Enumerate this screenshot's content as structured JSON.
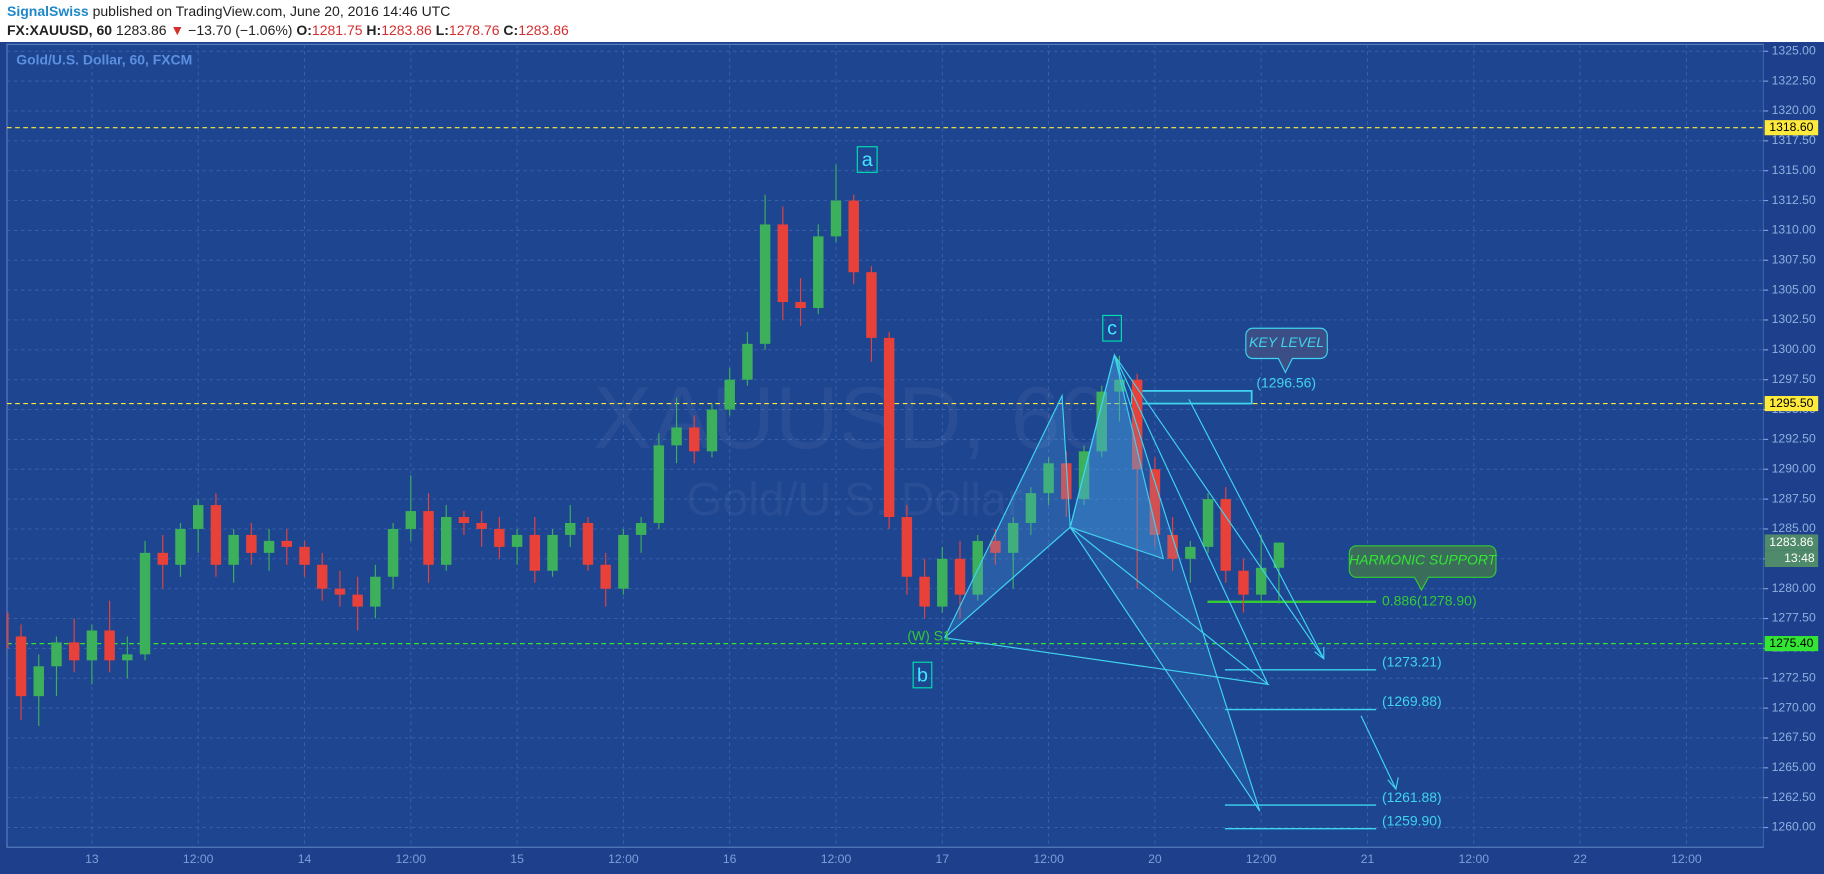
{
  "header": {
    "author": "SignalSwiss",
    "published": "published on TradingView.com, June 20, 2016 14:46 UTC",
    "symbol": "FX:XAUUSD, 60",
    "last": "1283.86",
    "arrow": "▼",
    "change": "−13.70 (−1.06%)",
    "o_label": "O:",
    "o": "1281.75",
    "h_label": "H:",
    "h": "1283.86",
    "l_label": "L:",
    "l": "1278.76",
    "c_label": "C:",
    "c": "1283.86"
  },
  "chart_data": {
    "type": "candlestick",
    "title": "Gold/U.S. Dollar, 60, FXCM",
    "watermark": "XAUUSD, 60",
    "watermark_sub": "Gold/U.S. Dollar",
    "categories": [
      null,
      null,
      null,
      null,
      null,
      "13",
      null,
      null,
      null,
      null,
      null,
      "12:00",
      null,
      null,
      null,
      null,
      null,
      "14",
      null,
      null,
      null,
      null,
      null,
      "12:00",
      null,
      null,
      null,
      null,
      null,
      "15",
      null,
      null,
      null,
      null,
      null,
      "12:00",
      null,
      null,
      null,
      null,
      null,
      "16",
      null,
      null,
      null,
      null,
      null,
      "12:00",
      null,
      null,
      null,
      null,
      null,
      "17",
      null,
      null,
      null,
      null,
      null,
      "12:00",
      null,
      null,
      null,
      null,
      null,
      "20",
      null,
      null,
      null,
      null,
      null,
      "12:00",
      null,
      null,
      null,
      null,
      null,
      "21",
      null,
      null,
      null,
      null,
      null,
      "12:00",
      null,
      null,
      null,
      null,
      null,
      "22",
      null,
      null,
      null,
      null,
      null,
      "12:00",
      null,
      null,
      null,
      null
    ],
    "open": [
      1278,
      1276,
      1271,
      1273.5,
      1275.5,
      1274,
      1276.5,
      1274,
      1274.5,
      1283,
      1282,
      1285,
      1287,
      1282,
      1284.5,
      1283,
      1284,
      1283.5,
      1282,
      1280,
      1279.5,
      1278.5,
      1281,
      1285,
      1286.5,
      1282,
      1286,
      1285.5,
      1285,
      1283.5,
      1284.5,
      1281.5,
      1284.5,
      1285.5,
      1282,
      1280,
      1284.5,
      1285.5,
      1292,
      1293.5,
      1291.5,
      1295,
      1297.5,
      1300.5,
      1310.5,
      1304,
      1303.5,
      1309.5,
      1312.5,
      1306.5,
      1301,
      1286,
      1281,
      1278.5,
      1282.5,
      1279.5,
      1284,
      1283,
      1285.5,
      1288,
      1290.5,
      1287.5,
      1291.5,
      1296.5,
      1297.5,
      1290,
      1284.5,
      1282.5,
      1283.5,
      1287.5,
      1281.5,
      1279.5,
      1281.75,
      null,
      null,
      null,
      null,
      null,
      null,
      null,
      null,
      null,
      null,
      null,
      null,
      null,
      null,
      null,
      null,
      null,
      null,
      null,
      null,
      null,
      null,
      null,
      null,
      null,
      null,
      null
    ],
    "high": [
      1280,
      1277,
      1274.5,
      1276,
      1277.5,
      1277,
      1279,
      1276,
      1284,
      1284.5,
      1285.5,
      1287.5,
      1288,
      1285,
      1285.5,
      1285,
      1285,
      1284,
      1283,
      1281.5,
      1281,
      1282,
      1285.5,
      1289.5,
      1288,
      1287,
      1286.5,
      1286.5,
      1286,
      1285,
      1286,
      1285,
      1287,
      1286,
      1283,
      1285,
      1286,
      1293,
      1296,
      1294.5,
      1295.5,
      1298.5,
      1301.5,
      1313,
      1312,
      1306,
      1310.5,
      1315.5,
      1313,
      1307,
      1301.5,
      1287,
      1282.5,
      1283.5,
      1284,
      1284.5,
      1285,
      1286,
      1288.5,
      1291,
      1291.5,
      1292,
      1297,
      1299.5,
      1298,
      1291,
      1286,
      1284,
      1288,
      1288.5,
      1282.5,
      1284.5,
      1283.86,
      null,
      null,
      null,
      null,
      null,
      null,
      null,
      null,
      null,
      null,
      null,
      null,
      null,
      null,
      null,
      null,
      null,
      null,
      null,
      null,
      null,
      null,
      null,
      null,
      null,
      null,
      null
    ],
    "low": [
      1273,
      1269,
      1268.5,
      1271,
      1273,
      1272,
      1273,
      1272.5,
      1274,
      1280,
      1281,
      1283,
      1281,
      1280.5,
      1282,
      1281.5,
      1282,
      1281,
      1279,
      1278.5,
      1276.5,
      1277.5,
      1280,
      1284,
      1280.5,
      1281.5,
      1284.5,
      1283.5,
      1282.5,
      1282,
      1280.5,
      1281,
      1283.5,
      1281.5,
      1278.5,
      1279.5,
      1283,
      1285,
      1290.5,
      1290.5,
      1291,
      1294.5,
      1297,
      1300,
      1302.5,
      1302,
      1303,
      1309,
      1305.5,
      1299,
      1285,
      1279.5,
      1277.5,
      1278,
      1277.5,
      1279,
      1282,
      1280,
      1284.5,
      1287,
      1286,
      1287,
      1291,
      1294,
      1280,
      1283.5,
      1281.5,
      1280.5,
      1283,
      1280.5,
      1278,
      1279,
      1278.76,
      null,
      null,
      null,
      null,
      null,
      null,
      null,
      null,
      null,
      null,
      null,
      null,
      null,
      null,
      null,
      null,
      null,
      null,
      null,
      null,
      null,
      null,
      null,
      null,
      null,
      null,
      null
    ],
    "close": [
      1275,
      1271,
      1273.5,
      1275.5,
      1274,
      1276.5,
      1274,
      1274.5,
      1283,
      1282,
      1285,
      1287,
      1282,
      1284.5,
      1283,
      1284,
      1283.5,
      1282,
      1280,
      1279.5,
      1278.5,
      1281,
      1285,
      1286.5,
      1282,
      1286,
      1285.5,
      1285,
      1283.5,
      1284.5,
      1281.5,
      1284.5,
      1285.5,
      1282,
      1280,
      1284.5,
      1285.5,
      1292,
      1293.5,
      1291.5,
      1295,
      1297.5,
      1300.5,
      1310.5,
      1304,
      1303.5,
      1309.5,
      1312.5,
      1306.5,
      1301,
      1286,
      1281,
      1278.5,
      1282.5,
      1279.5,
      1284,
      1283,
      1285.5,
      1288,
      1290.5,
      1287.5,
      1291.5,
      1296.5,
      1297.5,
      1290,
      1284.5,
      1282.5,
      1283.5,
      1287.5,
      1281.5,
      1279.5,
      1281.75,
      1283.86,
      null,
      null,
      null,
      null,
      null,
      null,
      null,
      null,
      null,
      null,
      null,
      null,
      null,
      null,
      null,
      null,
      null,
      null,
      null,
      null,
      null,
      null,
      null,
      null,
      null,
      null,
      null
    ],
    "up_color": "#3cb05a",
    "down_color": "#e8413a",
    "ylim": [
      1258.35,
      1325.58
    ],
    "yticks": [
      {
        "value": 1260,
        "label": "1260.00"
      },
      {
        "value": 1262.5,
        "label": "1262.50"
      },
      {
        "value": 1265,
        "label": "1265.00"
      },
      {
        "value": 1267.5,
        "label": "1267.50"
      },
      {
        "value": 1270,
        "label": "1270.00"
      },
      {
        "value": 1272.5,
        "label": "1272.50"
      },
      {
        "value": 1275,
        "label": "1275.00"
      },
      {
        "value": 1277.5,
        "label": "1277.50"
      },
      {
        "value": 1280,
        "label": "1280.00"
      },
      {
        "value": 1282.5,
        "label": "1282.50"
      },
      {
        "value": 1285,
        "label": "1285.00"
      },
      {
        "value": 1287.5,
        "label": "1287.50"
      },
      {
        "value": 1290,
        "label": "1290.00"
      },
      {
        "value": 1292.5,
        "label": "1292.50"
      },
      {
        "value": 1295,
        "label": "1295.00"
      },
      {
        "value": 1297.5,
        "label": "1297.50"
      },
      {
        "value": 1300,
        "label": "1300.00"
      },
      {
        "value": 1302.5,
        "label": "1302.50"
      },
      {
        "value": 1305,
        "label": "1305.00"
      },
      {
        "value": 1307.5,
        "label": "1307.50"
      },
      {
        "value": 1310,
        "label": "1310.00"
      },
      {
        "value": 1312.5,
        "label": "1312.50"
      },
      {
        "value": 1315,
        "label": "1315.00"
      },
      {
        "value": 1317.5,
        "label": "1317.50"
      },
      {
        "value": 1320,
        "label": "1320.00"
      },
      {
        "value": 1322.5,
        "label": "1322.50"
      },
      {
        "value": 1325,
        "label": "1325.00"
      }
    ],
    "grid": true,
    "price_lines": [
      {
        "value": 1318.6,
        "label": "1318.60",
        "color": "#ffeb3b"
      },
      {
        "value": 1295.5,
        "label": "1295.50",
        "color": "#ffeb3b"
      },
      {
        "value": 1275.4,
        "label": "1275.40",
        "color": "#33e633"
      }
    ],
    "last_price": {
      "value": 1283.86,
      "label": "1283.86",
      "countdown": "13:48"
    },
    "targets": [
      {
        "value": 1296.56,
        "label": "(1296.56)",
        "color": "#3fd4ef"
      },
      {
        "value": 1278.9,
        "label": "0.886(1278.90)",
        "color": "#33cc33"
      },
      {
        "value": 1273.21,
        "label": "(1273.21)",
        "color": "#3fd4ef"
      },
      {
        "value": 1269.88,
        "label": "(1269.88)",
        "color": "#3fd4ef"
      },
      {
        "value": 1261.88,
        "label": "(1261.88)",
        "color": "#3fd4ef"
      },
      {
        "value": 1259.9,
        "label": "(1259.90)",
        "color": "#3fd4ef"
      }
    ],
    "wave_labels": [
      "a",
      "b",
      "c"
    ],
    "s1_label": "(W) S1",
    "callouts": [
      "KEY LEVEL",
      "HARMONIC SUPPORT"
    ]
  }
}
